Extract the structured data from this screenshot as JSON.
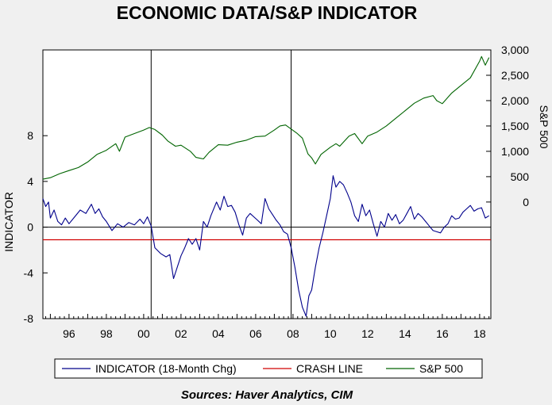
{
  "chart_data": {
    "type": "line",
    "title": "ECONOMIC DATA/S&P INDICATOR",
    "ylabel": "INDICATOR",
    "y2label": "S&P 500",
    "source": "Sources:  Haver Analytics, CIM",
    "ylim": [
      -8,
      15.5
    ],
    "y2lim": [
      -2300,
      3000
    ],
    "y_ticks": [
      {
        "value": 8,
        "label": "8"
      },
      {
        "value": 4,
        "label": "4"
      },
      {
        "value": 0,
        "label": "0"
      },
      {
        "value": -4,
        "label": "-4"
      },
      {
        "value": -8,
        "label": "-8"
      }
    ],
    "y2_ticks": [
      {
        "value": 3000,
        "label": "3,000"
      },
      {
        "value": 2500,
        "label": "2,500"
      },
      {
        "value": 2000,
        "label": "2,000"
      },
      {
        "value": 1500,
        "label": "1,500"
      },
      {
        "value": 1000,
        "label": "1,000"
      },
      {
        "value": 500,
        "label": "500"
      },
      {
        "value": 0,
        "label": "0"
      }
    ],
    "xlim": [
      1994.6,
      2018.6
    ],
    "x_ticks": [
      {
        "value": 1996,
        "label": "96"
      },
      {
        "value": 1998,
        "label": "98"
      },
      {
        "value": 2000,
        "label": "00"
      },
      {
        "value": 2002,
        "label": "02"
      },
      {
        "value": 2004,
        "label": "04"
      },
      {
        "value": 2006,
        "label": "06"
      },
      {
        "value": 2008,
        "label": "08"
      },
      {
        "value": 2010,
        "label": "10"
      },
      {
        "value": 2012,
        "label": "12"
      },
      {
        "value": 2014,
        "label": "14"
      },
      {
        "value": 2016,
        "label": "16"
      },
      {
        "value": 2018,
        "label": "18"
      }
    ],
    "vlines": [
      2000.4,
      2007.9
    ],
    "zero_line": 0,
    "crash_line": -1.1,
    "legend": [
      {
        "label": "INDICATOR (18-Month Chg)",
        "color": "#00008b"
      },
      {
        "label": "CRASH LINE",
        "color": "#d00000"
      },
      {
        "label": "S&P 500",
        "color": "#006400"
      }
    ],
    "series": [
      {
        "name": "INDICATOR (18-Month Chg)",
        "color": "#00008b",
        "axis": "left",
        "x": [
          1994.6,
          1994.75,
          1994.9,
          1995.0,
          1995.2,
          1995.4,
          1995.6,
          1995.8,
          1996.0,
          1996.3,
          1996.6,
          1996.9,
          1997.2,
          1997.4,
          1997.6,
          1997.8,
          1998.0,
          1998.3,
          1998.6,
          1998.9,
          1999.2,
          1999.5,
          1999.8,
          2000.0,
          2000.2,
          2000.4,
          2000.6,
          2000.9,
          2001.2,
          2001.4,
          2001.6,
          2001.8,
          2002.0,
          2002.2,
          2002.4,
          2002.6,
          2002.8,
          2003.0,
          2003.2,
          2003.4,
          2003.6,
          2003.9,
          2004.1,
          2004.3,
          2004.5,
          2004.7,
          2004.9,
          2005.1,
          2005.3,
          2005.5,
          2005.7,
          2005.9,
          2006.1,
          2006.3,
          2006.5,
          2006.7,
          2006.9,
          2007.1,
          2007.3,
          2007.5,
          2007.7,
          2007.9,
          2008.1,
          2008.3,
          2008.5,
          2008.7,
          2008.85,
          2009.0,
          2009.2,
          2009.4,
          2009.6,
          2009.8,
          2010.0,
          2010.15,
          2010.3,
          2010.5,
          2010.7,
          2010.9,
          2011.1,
          2011.3,
          2011.5,
          2011.7,
          2011.9,
          2012.1,
          2012.3,
          2012.5,
          2012.7,
          2012.9,
          2013.1,
          2013.3,
          2013.5,
          2013.7,
          2013.9,
          2014.1,
          2014.3,
          2014.5,
          2014.7,
          2014.9,
          2015.1,
          2015.3,
          2015.5,
          2015.7,
          2015.9,
          2016.1,
          2016.3,
          2016.5,
          2016.7,
          2016.9,
          2017.1,
          2017.3,
          2017.5,
          2017.7,
          2017.9,
          2018.1,
          2018.3,
          2018.5
        ],
        "values": [
          2.5,
          1.8,
          2.2,
          0.8,
          1.5,
          0.5,
          0.2,
          0.8,
          0.3,
          0.9,
          1.5,
          1.2,
          2.0,
          1.2,
          1.6,
          0.9,
          0.5,
          -0.3,
          0.3,
          0.0,
          0.4,
          0.2,
          0.7,
          0.3,
          0.9,
          0.1,
          -1.8,
          -2.3,
          -2.6,
          -2.4,
          -4.5,
          -3.5,
          -2.5,
          -1.8,
          -1.0,
          -1.5,
          -1.0,
          -2.0,
          0.5,
          0.0,
          1.0,
          2.2,
          1.5,
          2.7,
          1.8,
          1.9,
          1.3,
          0.2,
          -0.7,
          0.8,
          1.2,
          0.9,
          0.6,
          0.3,
          2.5,
          1.6,
          1.1,
          0.6,
          0.2,
          -0.4,
          -0.6,
          -1.8,
          -3.5,
          -5.5,
          -7.0,
          -7.8,
          -6.0,
          -5.5,
          -3.5,
          -1.8,
          -0.5,
          1.0,
          2.5,
          4.5,
          3.5,
          4.0,
          3.7,
          3.0,
          2.2,
          1.0,
          0.5,
          2.0,
          1.0,
          1.5,
          0.3,
          -0.8,
          0.5,
          0.0,
          1.2,
          0.6,
          1.1,
          0.3,
          0.6,
          1.2,
          1.8,
          0.7,
          1.2,
          0.9,
          0.5,
          0.1,
          -0.3,
          -0.4,
          -0.5,
          0.0,
          0.3,
          1.0,
          0.7,
          0.8,
          1.3,
          1.6,
          1.9,
          1.4,
          1.6,
          1.7,
          0.8,
          1.0
        ]
      },
      {
        "name": "S&P 500",
        "color": "#006400",
        "axis": "right",
        "x": [
          1994.6,
          1995.0,
          1995.5,
          1996.0,
          1996.5,
          1997.0,
          1997.5,
          1998.0,
          1998.5,
          1998.7,
          1999.0,
          1999.5,
          2000.0,
          2000.3,
          2000.6,
          2001.0,
          2001.3,
          2001.7,
          2002.0,
          2002.5,
          2002.8,
          2003.2,
          2003.5,
          2004.0,
          2004.5,
          2005.0,
          2005.5,
          2006.0,
          2006.5,
          2007.0,
          2007.3,
          2007.6,
          2007.9,
          2008.2,
          2008.5,
          2008.8,
          2009.0,
          2009.2,
          2009.5,
          2010.0,
          2010.3,
          2010.5,
          2011.0,
          2011.3,
          2011.7,
          2012.0,
          2012.5,
          2013.0,
          2013.5,
          2014.0,
          2014.5,
          2015.0,
          2015.5,
          2015.7,
          2016.0,
          2016.5,
          2017.0,
          2017.5,
          2018.0,
          2018.1,
          2018.3,
          2018.5
        ],
        "values": [
          450,
          480,
          560,
          620,
          680,
          790,
          940,
          1020,
          1150,
          1000,
          1280,
          1350,
          1420,
          1470,
          1430,
          1320,
          1200,
          1100,
          1120,
          1000,
          880,
          850,
          980,
          1130,
          1120,
          1180,
          1220,
          1290,
          1300,
          1420,
          1500,
          1520,
          1440,
          1360,
          1260,
          950,
          870,
          750,
          940,
          1080,
          1150,
          1100,
          1300,
          1350,
          1150,
          1300,
          1380,
          1500,
          1650,
          1800,
          1950,
          2050,
          2100,
          2000,
          1940,
          2150,
          2300,
          2450,
          2780,
          2870,
          2700,
          2850
        ]
      }
    ]
  }
}
